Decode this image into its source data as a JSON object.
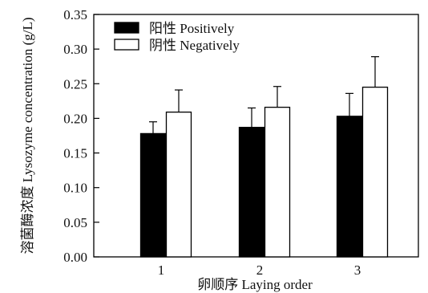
{
  "chart_data": {
    "type": "bar",
    "xlabel": "卵顺序 Laying order",
    "ylabel": "溶菌酶浓度 Lysozyme concentration (g/L)",
    "categories": [
      "1",
      "2",
      "3"
    ],
    "ylim": [
      0,
      0.35
    ],
    "yticks": [
      "0.00",
      "0.05",
      "0.10",
      "0.15",
      "0.20",
      "0.25",
      "0.30",
      "0.35"
    ],
    "grid": false,
    "legend_position": "top-left",
    "series": [
      {
        "name": "阳性  Positively",
        "color": "#000000",
        "fill": "#000000",
        "values": [
          0.178,
          0.187,
          0.203
        ],
        "errors": [
          0.017,
          0.028,
          0.033
        ]
      },
      {
        "name": "阴性  Negatively",
        "color": "#000000",
        "fill": "#ffffff",
        "values": [
          0.209,
          0.216,
          0.245
        ],
        "errors": [
          0.032,
          0.03,
          0.044
        ]
      }
    ]
  }
}
